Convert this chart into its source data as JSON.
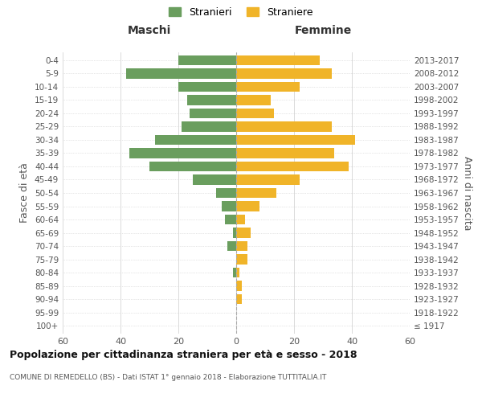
{
  "age_groups": [
    "100+",
    "95-99",
    "90-94",
    "85-89",
    "80-84",
    "75-79",
    "70-74",
    "65-69",
    "60-64",
    "55-59",
    "50-54",
    "45-49",
    "40-44",
    "35-39",
    "30-34",
    "25-29",
    "20-24",
    "15-19",
    "10-14",
    "5-9",
    "0-4"
  ],
  "birth_years": [
    "≤ 1917",
    "1918-1922",
    "1923-1927",
    "1928-1932",
    "1933-1937",
    "1938-1942",
    "1943-1947",
    "1948-1952",
    "1953-1957",
    "1958-1962",
    "1963-1967",
    "1968-1972",
    "1973-1977",
    "1978-1982",
    "1983-1987",
    "1988-1992",
    "1993-1997",
    "1998-2002",
    "2003-2007",
    "2008-2012",
    "2013-2017"
  ],
  "maschi": [
    0,
    0,
    0,
    0,
    1,
    0,
    3,
    1,
    4,
    5,
    7,
    15,
    30,
    37,
    28,
    19,
    16,
    17,
    20,
    38,
    20
  ],
  "femmine": [
    0,
    0,
    2,
    2,
    1,
    4,
    4,
    5,
    3,
    8,
    14,
    22,
    39,
    34,
    41,
    33,
    13,
    12,
    22,
    33,
    29
  ],
  "male_color": "#6a9e5e",
  "female_color": "#f0b429",
  "title": "Popolazione per cittadinanza straniera per età e sesso - 2018",
  "subtitle": "COMUNE DI REMEDELLO (BS) - Dati ISTAT 1° gennaio 2018 - Elaborazione TUTTITALIA.IT",
  "left_label": "Maschi",
  "right_label": "Femmine",
  "ylabel_left": "Fasce di età",
  "ylabel_right": "Anni di nascita",
  "legend_male": "Stranieri",
  "legend_female": "Straniere",
  "xlim": 60,
  "background_color": "#ffffff",
  "grid_color": "#cccccc"
}
